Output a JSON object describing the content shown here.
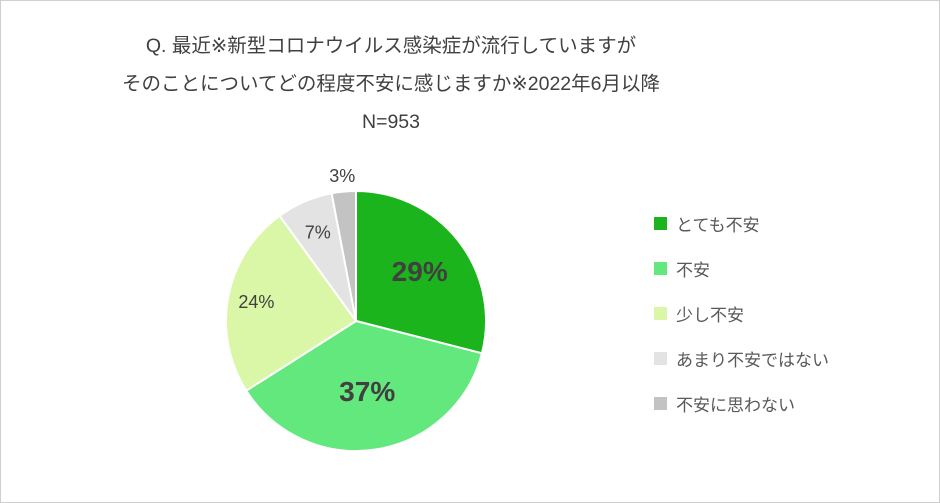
{
  "title": {
    "line1": "Q. 最近※新型コロナウイルス感染症が流行していますが",
    "line2": "そのことについてどの程度不安に感じますか※2022年6月以降",
    "line3": "N=953"
  },
  "chart_data": {
    "type": "pie",
    "title": "Q. 最近※新型コロナウイルス感染症が流行していますが そのことについてどの程度不安に感じますか※2022年6月以降",
    "sample_size_label": "N=953",
    "start_angle_deg": 0,
    "direction": "clockwise",
    "legend_position": "right",
    "slice_gap_color": "#ffffff",
    "label_color": "#404040",
    "slices": [
      {
        "label": "とても不安",
        "value": 29,
        "pct_label": "29%",
        "color": "#1cb41c",
        "label_placement": "inside"
      },
      {
        "label": "不安",
        "value": 37,
        "pct_label": "37%",
        "color": "#63e87d",
        "label_placement": "inside"
      },
      {
        "label": "少し不安",
        "value": 24,
        "pct_label": "24%",
        "color": "#d9f7a6",
        "label_placement": "inside-edge"
      },
      {
        "label": "あまり不安ではない",
        "value": 7,
        "pct_label": "7%",
        "color": "#e3e3e3",
        "label_placement": "inside-edge"
      },
      {
        "label": "不安に思わない",
        "value": 3,
        "pct_label": "3%",
        "color": "#c3c3c3",
        "label_placement": "outside"
      }
    ]
  }
}
